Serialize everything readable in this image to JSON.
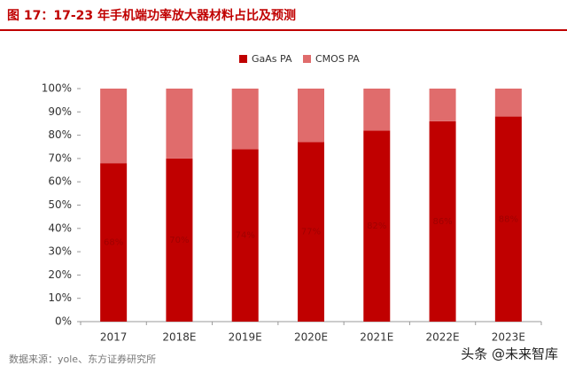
{
  "chart_data": {
    "type": "stacked_bar",
    "title": "图 17：17-23 年手机端功率放大器材料占比及预测",
    "categories": [
      "2017",
      "2018E",
      "2019E",
      "2020E",
      "2021E",
      "2022E",
      "2023E"
    ],
    "series": [
      {
        "name": "GaAs PA",
        "color": "#c00000",
        "values": [
          68,
          70,
          74,
          77,
          82,
          86,
          88
        ],
        "value_labels": [
          "68%",
          "70%",
          "74%",
          "77%",
          "82%",
          "86%",
          "88%"
        ]
      },
      {
        "name": "CMOS PA",
        "color": "#e06c6c",
        "values": [
          32,
          30,
          26,
          23,
          18,
          14,
          12
        ]
      }
    ],
    "ylim": [
      0,
      100
    ],
    "yticks": [
      {
        "value": 0,
        "label": "0%"
      },
      {
        "value": 10,
        "label": "10%"
      },
      {
        "value": 20,
        "label": "20%"
      },
      {
        "value": 30,
        "label": "30%"
      },
      {
        "value": 40,
        "label": "40%"
      },
      {
        "value": 50,
        "label": "50%"
      },
      {
        "value": 60,
        "label": "60%"
      },
      {
        "value": 70,
        "label": "70%"
      },
      {
        "value": 80,
        "label": "80%"
      },
      {
        "value": 90,
        "label": "90%"
      },
      {
        "value": 100,
        "label": "100%"
      }
    ],
    "legend": "top",
    "source": "数据来源：yole、东方证券研究所",
    "watermark": "头条 @未来智库"
  }
}
